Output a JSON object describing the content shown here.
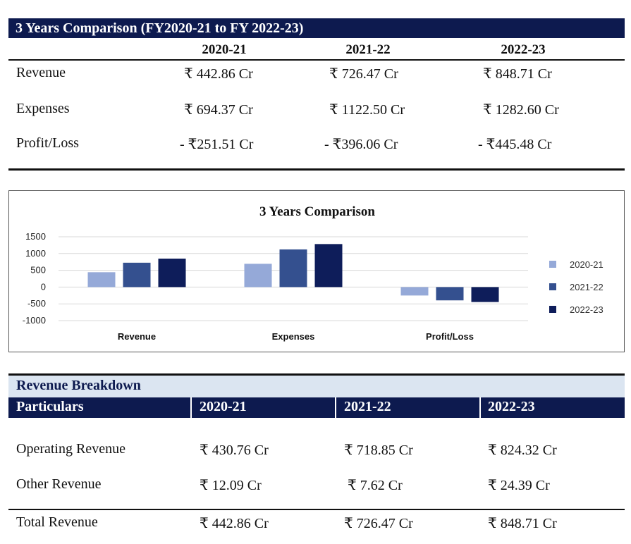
{
  "comparison": {
    "title": "3 Years Comparison (FY2020-21 to FY 2022-23)",
    "years": [
      "2020-21",
      "2021-22",
      "2022-23"
    ],
    "rows": [
      {
        "label": "Revenue",
        "values": [
          "₹ 442.86 Cr",
          "₹ 726.47 Cr",
          "₹ 848.71 Cr"
        ]
      },
      {
        "label": "Expenses",
        "values": [
          "₹ 694.37 Cr",
          "₹ 1122.50 Cr",
          "₹ 1282.60 Cr"
        ]
      },
      {
        "label": "Profit/Loss",
        "values": [
          "- ₹251.51 Cr",
          "- ₹396.06 Cr",
          "- ₹445.48 Cr"
        ]
      }
    ]
  },
  "chart_data": {
    "type": "bar",
    "title": "3 Years Comparison",
    "categories": [
      "Revenue",
      "Expenses",
      "Profit/Loss"
    ],
    "series": [
      {
        "name": "2020-21",
        "values": [
          442.86,
          694.37,
          -251.51
        ],
        "color": "#95a9d8"
      },
      {
        "name": "2021-22",
        "values": [
          726.47,
          1122.5,
          -396.06
        ],
        "color": "#34508f"
      },
      {
        "name": "2022-23",
        "values": [
          848.71,
          1282.6,
          -445.48
        ],
        "color": "#0e1d5a"
      }
    ],
    "yticks": [
      1500,
      1000,
      500,
      0,
      -500,
      -1000
    ],
    "ylim": [
      -1000,
      1500
    ],
    "grid": true,
    "legend": "right"
  },
  "breakdown": {
    "section_title": "Revenue Breakdown",
    "header": {
      "label": "Particulars",
      "years": [
        "2020-21",
        "2021-22",
        "2022-23"
      ]
    },
    "rows": [
      {
        "label": "Operating Revenue",
        "values": [
          "₹ 430.76 Cr",
          "₹ 718.85 Cr",
          "₹ 824.32 Cr"
        ]
      },
      {
        "label": "Other Revenue",
        "values": [
          "₹ 12.09 Cr",
          "₹ 7.62 Cr",
          "₹ 24.39 Cr"
        ]
      }
    ],
    "total": {
      "label": "Total Revenue",
      "values": [
        "₹ 442.86 Cr",
        "₹ 726.47 Cr",
        "₹ 848.71 Cr"
      ]
    }
  }
}
